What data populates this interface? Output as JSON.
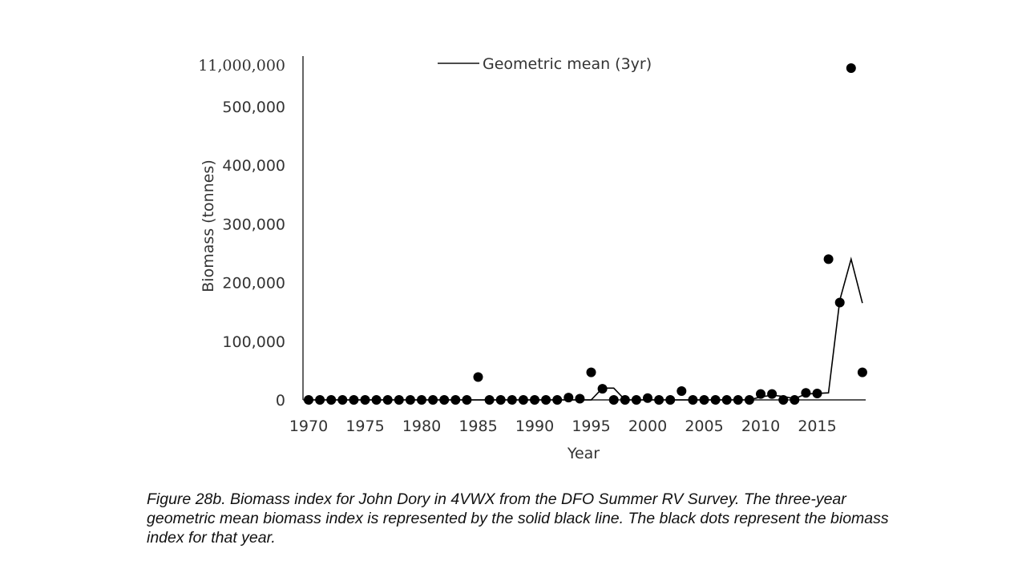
{
  "chart_data": {
    "type": "scatter",
    "xlabel": "Year",
    "ylabel": "Biomass (tonnes)",
    "legend": {
      "entries": [
        "Geometric mean (3yr)"
      ],
      "placement": "top-center"
    },
    "y_tick_labels": [
      "0",
      "100,000",
      "200,000",
      "300,000",
      "400,000",
      "500,000",
      "11,000,000"
    ],
    "y_ticks": [
      0,
      100000,
      200000,
      300000,
      400000,
      500000,
      11000000
    ],
    "x_tick_labels": [
      "1970",
      "1975",
      "1980",
      "1985",
      "1990",
      "1995",
      "2000",
      "2005",
      "2010",
      "2015"
    ],
    "x_ticks": [
      1970,
      1975,
      1980,
      1985,
      1990,
      1995,
      2000,
      2005,
      2010,
      2015
    ],
    "xlim": [
      1970,
      2019
    ],
    "series": [
      {
        "kind": "points",
        "x": [
          1970,
          1971,
          1972,
          1973,
          1974,
          1975,
          1976,
          1977,
          1978,
          1979,
          1980,
          1981,
          1982,
          1983,
          1984,
          1985,
          1986,
          1987,
          1988,
          1989,
          1990,
          1991,
          1992,
          1993,
          1994,
          1995,
          1996,
          1997,
          1998,
          1999,
          2000,
          2001,
          2002,
          2003,
          2004,
          2005,
          2006,
          2007,
          2008,
          2009,
          2010,
          2011,
          2012,
          2013,
          2014,
          2015,
          2016,
          2017,
          2018,
          2019
        ],
        "y": [
          0,
          0,
          0,
          0,
          0,
          0,
          0,
          0,
          0,
          0,
          0,
          0,
          0,
          0,
          0,
          39000,
          0,
          0,
          0,
          0,
          0,
          0,
          0,
          4000,
          2000,
          47000,
          19000,
          0,
          0,
          0,
          3000,
          0,
          0,
          15000,
          0,
          0,
          0,
          0,
          0,
          0,
          10000,
          10000,
          0,
          0,
          12000,
          11000,
          240000,
          166000,
          11000000,
          47000
        ]
      },
      {
        "name": "Geometric mean (3yr)",
        "kind": "line",
        "x": [
          1970,
          1971,
          1972,
          1973,
          1974,
          1975,
          1976,
          1977,
          1978,
          1979,
          1980,
          1981,
          1982,
          1983,
          1984,
          1985,
          1986,
          1987,
          1988,
          1989,
          1990,
          1991,
          1992,
          1993,
          1994,
          1995,
          1996,
          1997,
          1998,
          1999,
          2000,
          2001,
          2002,
          2003,
          2004,
          2005,
          2006,
          2007,
          2008,
          2009,
          2010,
          2011,
          2012,
          2013,
          2014,
          2015,
          2016,
          2017,
          2018,
          2019
        ],
        "y": [
          0,
          0,
          0,
          0,
          0,
          0,
          0,
          0,
          0,
          0,
          0,
          0,
          0,
          0,
          0,
          0,
          0,
          0,
          0,
          0,
          0,
          0,
          0,
          0,
          0,
          0,
          20000,
          20000,
          0,
          0,
          0,
          0,
          0,
          0,
          0,
          0,
          0,
          0,
          0,
          0,
          5000,
          8000,
          6000,
          2000,
          10000,
          11000,
          12000,
          170000,
          240000,
          165000
        ]
      }
    ]
  },
  "caption": "Figure 28b. Biomass index for John Dory in 4VWX from the DFO Summer RV Survey. The three-year geometric mean biomass index is represented by the solid black line. The black dots represent the biomass index for that year.",
  "colors": {
    "marks": "#000000",
    "axis": "#222222"
  }
}
